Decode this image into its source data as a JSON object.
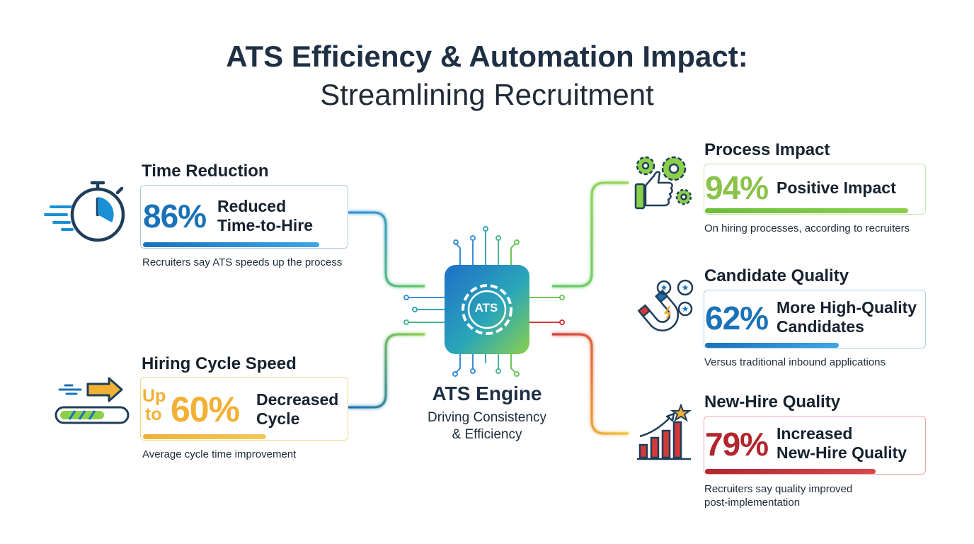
{
  "title": {
    "main": "ATS Efficiency & Automation Impact:",
    "subtitle": "Streamlining Recruitment"
  },
  "engine": {
    "chip_label": "ATS",
    "title": "ATS Engine",
    "subtitle_line1": "Driving Consistency",
    "subtitle_line2": "& Efficiency"
  },
  "left": {
    "time_reduction": {
      "heading": "Time Reduction",
      "percent": "86%",
      "label_line1": "Reduced",
      "label_line2": "Time-to-Hire",
      "note": "Recruiters say ATS speeds up the process",
      "color": "#1a72b8",
      "bar_level": 0.86
    },
    "hiring_cycle": {
      "heading": "Hiring Cycle Speed",
      "prefix_line1": "Up",
      "prefix_line2": "to",
      "percent": "60%",
      "label_line1": "Decreased",
      "label_line2": "Cycle",
      "note": "Average cycle time improvement",
      "color": "#f2b035",
      "bar_level": 0.6
    }
  },
  "right": {
    "process_impact": {
      "heading": "Process Impact",
      "percent": "94%",
      "label": "Positive Impact",
      "note": "On hiring processes, according to recruiters",
      "color": "#7cc04a",
      "bar_level": 0.94
    },
    "candidate_quality": {
      "heading": "Candidate Quality",
      "percent": "62%",
      "label_line1": "More High-Quality",
      "label_line2": "Candidates",
      "note": "Versus traditional inbound applications",
      "color": "#1a72b8",
      "bar_level": 0.62
    },
    "new_hire_quality": {
      "heading": "New-Hire Quality",
      "percent": "79%",
      "label_line1": "Increased",
      "label_line2": "New-Hire Quality",
      "note_line1": "Recruiters say quality improved",
      "note_line2": "post-implementation",
      "color": "#b3262e",
      "bar_level": 0.79
    }
  },
  "icons": {
    "time_reduction": "stopwatch-icon",
    "hiring_cycle": "speed-arrow-progress-icon",
    "engine": "gear-chip-icon",
    "process_impact": "gears-thumbs-up-icon",
    "candidate_quality": "magnet-stars-icon",
    "new_hire_quality": "growth-chart-star-icon"
  }
}
